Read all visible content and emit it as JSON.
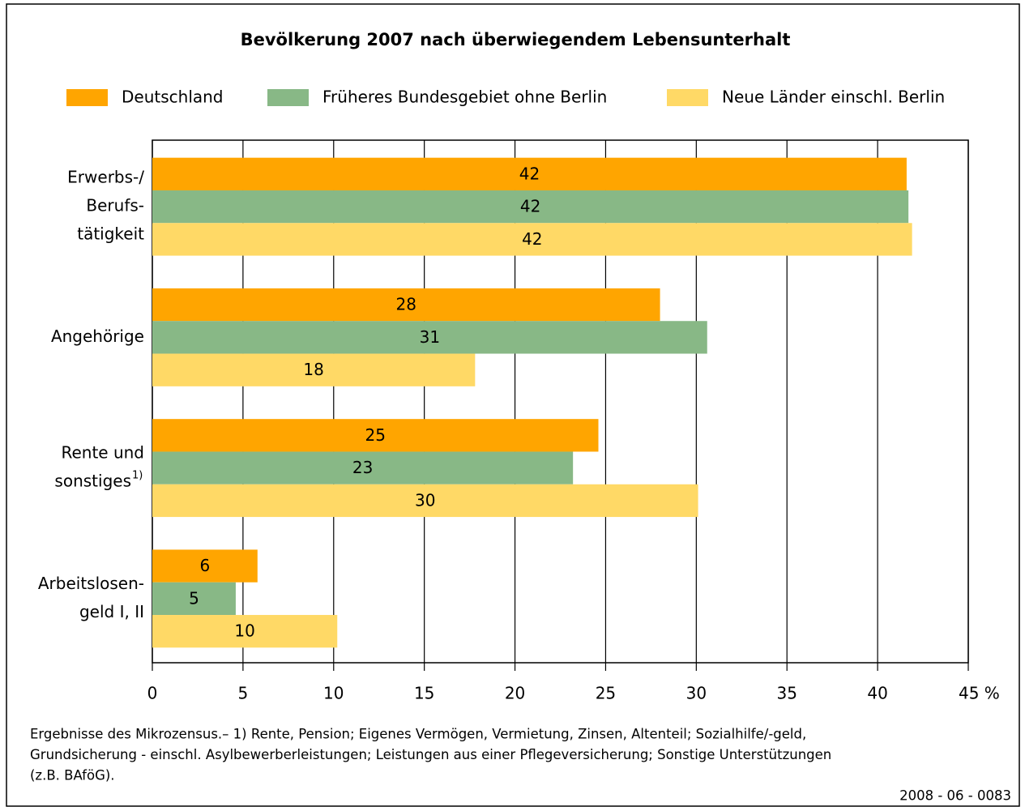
{
  "chart_data": {
    "type": "hbar",
    "title": "Bevölkerung 2007 nach überwiegendem Lebensunterhalt",
    "categories": [
      [
        "Erwerbs-/",
        "Berufs-",
        "tätigkeit"
      ],
      [
        "Angehörige"
      ],
      [
        "Rente und",
        "sonstiges"
      ],
      [
        "Arbeitslosen-",
        "geld I, II"
      ]
    ],
    "footnote_mark": "1)",
    "series": [
      {
        "name": "Deutschland",
        "color": "#ffa500",
        "values": [
          41.6,
          28.0,
          24.6,
          5.8
        ],
        "value_labels": [
          "42",
          "28",
          "25",
          "6"
        ]
      },
      {
        "name": "Früheres Bundesgebiet ohne Berlin",
        "color": "#88b886",
        "values": [
          41.7,
          30.6,
          23.2,
          4.6
        ],
        "value_labels": [
          "42",
          "31",
          "23",
          "5"
        ]
      },
      {
        "name": "Neue Länder einschl. Berlin",
        "color": "#ffd966",
        "values": [
          41.9,
          17.8,
          30.1,
          10.2
        ],
        "value_labels": [
          "42",
          "18",
          "30",
          "10"
        ]
      }
    ],
    "xlim": [
      0,
      45
    ],
    "xticks": [
      0,
      5,
      10,
      15,
      20,
      25,
      30,
      35,
      40,
      {
        "value": 45,
        "label": "45 %"
      }
    ],
    "grid": true,
    "note": [
      "Ergebnisse des Mikrozensus.– 1) Rente, Pension; Eigenes Vermögen, Vermietung, Zinsen, Altenteil; Sozialhilfe/-geld,",
      "Grundsicherung - einschl. Asylbewerberleistungen; Leistungen aus einer Pflegeversicherung; Sonstige Unterstützungen",
      "(z.B. BAföG)."
    ],
    "source": "2008 - 06 - 0083"
  }
}
